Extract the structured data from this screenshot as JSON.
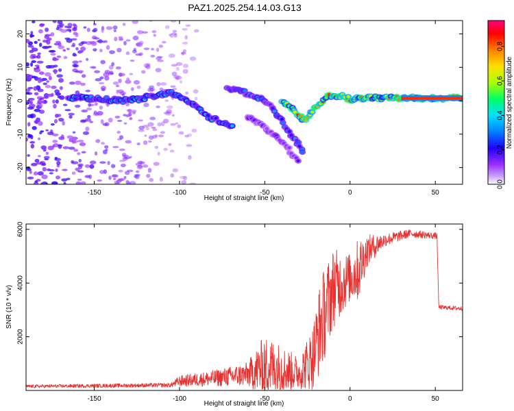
{
  "title": "PAZ1.2025.254.14.03.G13",
  "colors": {
    "snr_line": "#e8302e",
    "scatter": "#a55cf0"
  },
  "chart_data": [
    {
      "type": "heatmap",
      "name": "spectrogram",
      "xlabel": "Height of straight line (km)",
      "ylabel": "Frequency (Hz)",
      "xlim": [
        -190,
        66
      ],
      "ylim": [
        -25,
        24
      ],
      "xticks": [
        -150,
        -100,
        -50,
        0,
        50
      ],
      "xtick_labels": [
        "-150",
        "-100",
        "-50",
        "0",
        "50"
      ],
      "yticks": [
        -20,
        -10,
        0,
        10,
        20
      ],
      "ytick_labels": [
        "-20",
        "-10",
        "0",
        "10",
        "20"
      ],
      "colorbar": {
        "label": "Normalized spectral amplitude",
        "range": [
          0,
          0.95
        ],
        "ticks": [
          0,
          0.2,
          0.4,
          0.6,
          0.8
        ],
        "tick_labels": [
          "0.0",
          "0.2",
          "0.4",
          "0.6",
          "0.8"
        ],
        "colormap": [
          "#ffffff",
          "#9b30ff",
          "#2200ff",
          "#00c8ff",
          "#00ff66",
          "#aaff00",
          "#ffe000",
          "#ff8000",
          "#ff0000",
          "#ff0080"
        ]
      },
      "ridges": [
        {
          "name": "main-direct",
          "points": [
            [
              -165,
              1
            ],
            [
              -150,
              0.5
            ],
            [
              -130,
              0
            ],
            [
              -115,
              1.5
            ],
            [
              -105,
              2.5
            ],
            [
              -98,
              1
            ],
            [
              -90,
              -2
            ],
            [
              -82,
              -5
            ],
            [
              -75,
              -6.5
            ],
            [
              -68,
              -8
            ]
          ],
          "amplitude": 0.35
        },
        {
          "name": "reflected-branch",
          "points": [
            [
              -72,
              4
            ],
            [
              -62,
              2.5
            ],
            [
              -55,
              1
            ],
            [
              -50,
              0
            ],
            [
              -45,
              -2.5
            ],
            [
              -40,
              -6
            ],
            [
              -35,
              -10
            ],
            [
              -30,
              -13
            ],
            [
              -27,
              -16
            ]
          ],
          "amplitude": 0.3
        },
        {
          "name": "lower-branch",
          "points": [
            [
              -60,
              -5
            ],
            [
              -50,
              -8
            ],
            [
              -42,
              -11
            ],
            [
              -35,
              -15
            ],
            [
              -30,
              -19
            ]
          ],
          "amplitude": 0.18
        },
        {
          "name": "v-notch",
          "points": [
            [
              -40,
              0
            ],
            [
              -33,
              -3
            ],
            [
              -27,
              -6
            ],
            [
              -22,
              -3
            ],
            [
              -18,
              -1
            ],
            [
              -12,
              1.5
            ],
            [
              -5,
              1.5
            ],
            [
              0,
              0.5
            ],
            [
              10,
              0.8
            ],
            [
              20,
              0.8
            ],
            [
              30,
              0.8
            ],
            [
              40,
              0.8
            ],
            [
              66,
              0.8
            ]
          ],
          "amplitude": 0.75
        }
      ]
    },
    {
      "type": "line",
      "name": "snr",
      "xlabel": "Height of straight line (km)",
      "ylabel": "SNR (10 * v/v)",
      "xlim": [
        -190,
        66
      ],
      "ylim": [
        0,
        6200
      ],
      "xticks": [
        -150,
        -100,
        -50,
        0,
        50
      ],
      "xtick_labels": [
        "-150",
        "-100",
        "-50",
        "0",
        "50"
      ],
      "yticks": [
        2000,
        4000,
        6000
      ],
      "ytick_labels": [
        "2000",
        "4000",
        "6000"
      ],
      "envelope": [
        {
          "x": -190,
          "mean": 150,
          "spread": 60
        },
        {
          "x": -105,
          "mean": 200,
          "spread": 80
        },
        {
          "x": -100,
          "mean": 350,
          "spread": 200
        },
        {
          "x": -80,
          "mean": 450,
          "spread": 300
        },
        {
          "x": -60,
          "mean": 600,
          "spread": 450
        },
        {
          "x": -50,
          "mean": 900,
          "spread": 1200
        },
        {
          "x": -40,
          "mean": 800,
          "spread": 900
        },
        {
          "x": -30,
          "mean": 650,
          "spread": 600
        },
        {
          "x": -22,
          "mean": 1200,
          "spread": 1200
        },
        {
          "x": -17,
          "mean": 2500,
          "spread": 1800
        },
        {
          "x": -10,
          "mean": 3800,
          "spread": 1500
        },
        {
          "x": 0,
          "mean": 4200,
          "spread": 900
        },
        {
          "x": 5,
          "mean": 4500,
          "spread": 1200
        },
        {
          "x": 10,
          "mean": 5200,
          "spread": 600
        },
        {
          "x": 20,
          "mean": 5600,
          "spread": 250
        },
        {
          "x": 35,
          "mean": 5850,
          "spread": 150
        },
        {
          "x": 51,
          "mean": 5750,
          "spread": 120
        },
        {
          "x": 52,
          "mean": 3100,
          "spread": 80
        },
        {
          "x": 66,
          "mean": 3050,
          "spread": 80
        }
      ]
    }
  ]
}
